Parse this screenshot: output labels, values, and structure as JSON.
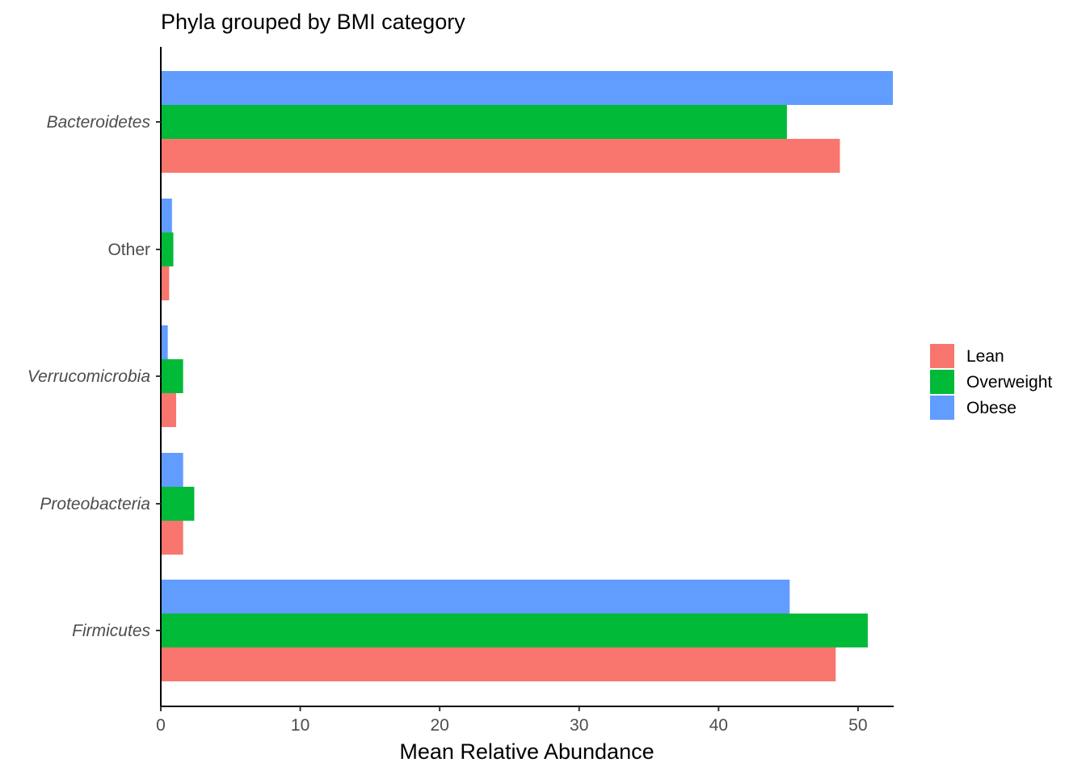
{
  "chart_data": {
    "type": "bar",
    "orientation": "horizontal",
    "title": "Phyla grouped by BMI category",
    "xlabel": "Mean Relative Abundance",
    "ylabel": "",
    "xlim": [
      0,
      52.5
    ],
    "x_ticks": [
      0,
      10,
      20,
      30,
      40,
      50
    ],
    "grid": false,
    "legend_position": "right",
    "categories": [
      "Bacteroidetes",
      "Other",
      "Verrucomicrobia",
      "Proteobacteria",
      "Firmicutes"
    ],
    "category_italic": [
      true,
      false,
      true,
      true,
      true
    ],
    "series": [
      {
        "name": "Lean",
        "color": "#F8766D",
        "values": [
          48.7,
          0.6,
          1.1,
          1.6,
          48.4
        ]
      },
      {
        "name": "Overweight",
        "color": "#00BA38",
        "values": [
          44.9,
          0.9,
          1.6,
          2.4,
          50.7
        ]
      },
      {
        "name": "Obese",
        "color": "#619CFF",
        "values": [
          52.5,
          0.8,
          0.5,
          1.6,
          45.1
        ]
      }
    ]
  }
}
